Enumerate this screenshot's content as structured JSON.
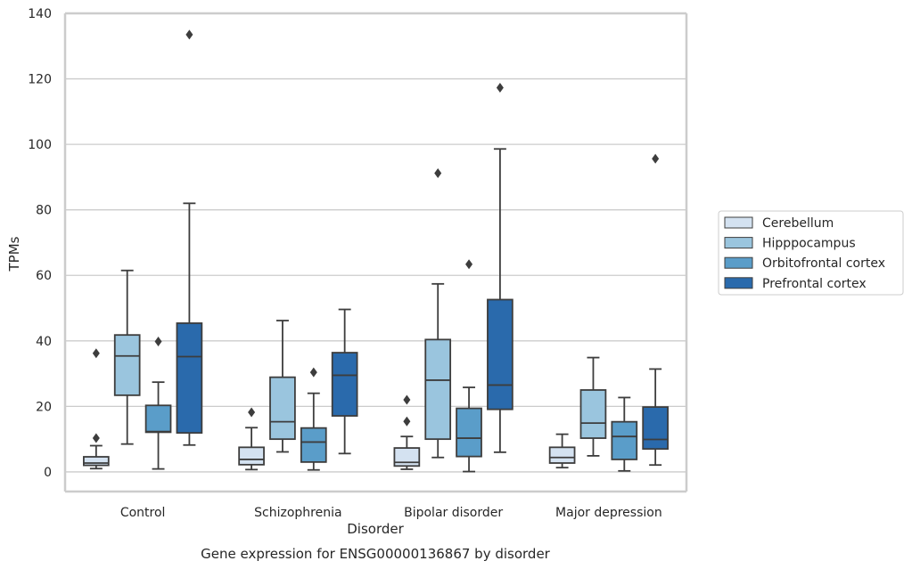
{
  "chart_data": {
    "type": "box",
    "caption": "Gene expression for ENSG00000136867 by disorder",
    "xlabel": "Disorder",
    "ylabel": "TPMs",
    "ylim": [
      -6,
      140
    ],
    "yticks": [
      0,
      20,
      40,
      60,
      80,
      100,
      120,
      140
    ],
    "grid": "horizontal",
    "legend_position": "right",
    "categories": [
      "Control",
      "Schizophrenia",
      "Bipolar disorder",
      "Major depression"
    ],
    "series": [
      {
        "name": "Cerebellum",
        "color": "#d4e2f1",
        "boxes": [
          {
            "whisker_low": 1,
            "q1": 2,
            "median": 2.7,
            "q3": 4.6,
            "whisker_high": 8,
            "outliers": [
              10.3,
              36.2
            ]
          },
          {
            "whisker_low": 0.7,
            "q1": 2.2,
            "median": 3.8,
            "q3": 7.5,
            "whisker_high": 13.5,
            "outliers": [
              18.2
            ]
          },
          {
            "whisker_low": 0.8,
            "q1": 1.8,
            "median": 2.9,
            "q3": 7.3,
            "whisker_high": 10.8,
            "outliers": [
              15.4,
              22
            ]
          },
          {
            "whisker_low": 1.3,
            "q1": 2.7,
            "median": 4.4,
            "q3": 7.5,
            "whisker_high": 11.5,
            "outliers": []
          }
        ]
      },
      {
        "name": "Hipppocampus",
        "color": "#9ac5de",
        "boxes": [
          {
            "whisker_low": 8.5,
            "q1": 23.4,
            "median": 35.4,
            "q3": 41.8,
            "whisker_high": 61.5,
            "outliers": []
          },
          {
            "whisker_low": 6.1,
            "q1": 10,
            "median": 15.3,
            "q3": 28.9,
            "whisker_high": 46.2,
            "outliers": []
          },
          {
            "whisker_low": 4.4,
            "q1": 10,
            "median": 28,
            "q3": 40.4,
            "whisker_high": 57.4,
            "outliers": [
              91.2
            ]
          },
          {
            "whisker_low": 4.9,
            "q1": 10.3,
            "median": 14.9,
            "q3": 25,
            "whisker_high": 34.9,
            "outliers": []
          }
        ]
      },
      {
        "name": "Orbitofrontal cortex",
        "color": "#5a9dc9",
        "boxes": [
          {
            "whisker_low": 0.9,
            "q1": 12.1,
            "median": 12.3,
            "q3": 20.3,
            "whisker_high": 27.4,
            "outliers": [
              39.8
            ]
          },
          {
            "whisker_low": 0.6,
            "q1": 3,
            "median": 9.1,
            "q3": 13.4,
            "whisker_high": 24,
            "outliers": [
              30.4
            ]
          },
          {
            "whisker_low": 0.1,
            "q1": 4.7,
            "median": 10.3,
            "q3": 19.4,
            "whisker_high": 25.8,
            "outliers": [
              63.4
            ]
          },
          {
            "whisker_low": 0.3,
            "q1": 3.8,
            "median": 10.8,
            "q3": 15.3,
            "whisker_high": 22.7,
            "outliers": []
          }
        ]
      },
      {
        "name": "Prefrontal cortex",
        "color": "#2a6aac",
        "boxes": [
          {
            "whisker_low": 8.2,
            "q1": 11.9,
            "median": 35.2,
            "q3": 45.4,
            "whisker_high": 82,
            "outliers": [
              133.5
            ]
          },
          {
            "whisker_low": 5.6,
            "q1": 17.1,
            "median": 29.5,
            "q3": 36.4,
            "whisker_high": 49.6,
            "outliers": []
          },
          {
            "whisker_low": 6,
            "q1": 19.1,
            "median": 26.5,
            "q3": 52.6,
            "whisker_high": 98.6,
            "outliers": [
              117.3
            ]
          },
          {
            "whisker_low": 2.1,
            "q1": 7,
            "median": 9.9,
            "q3": 19.8,
            "whisker_high": 31.4,
            "outliers": [
              95.6
            ]
          }
        ]
      }
    ]
  }
}
